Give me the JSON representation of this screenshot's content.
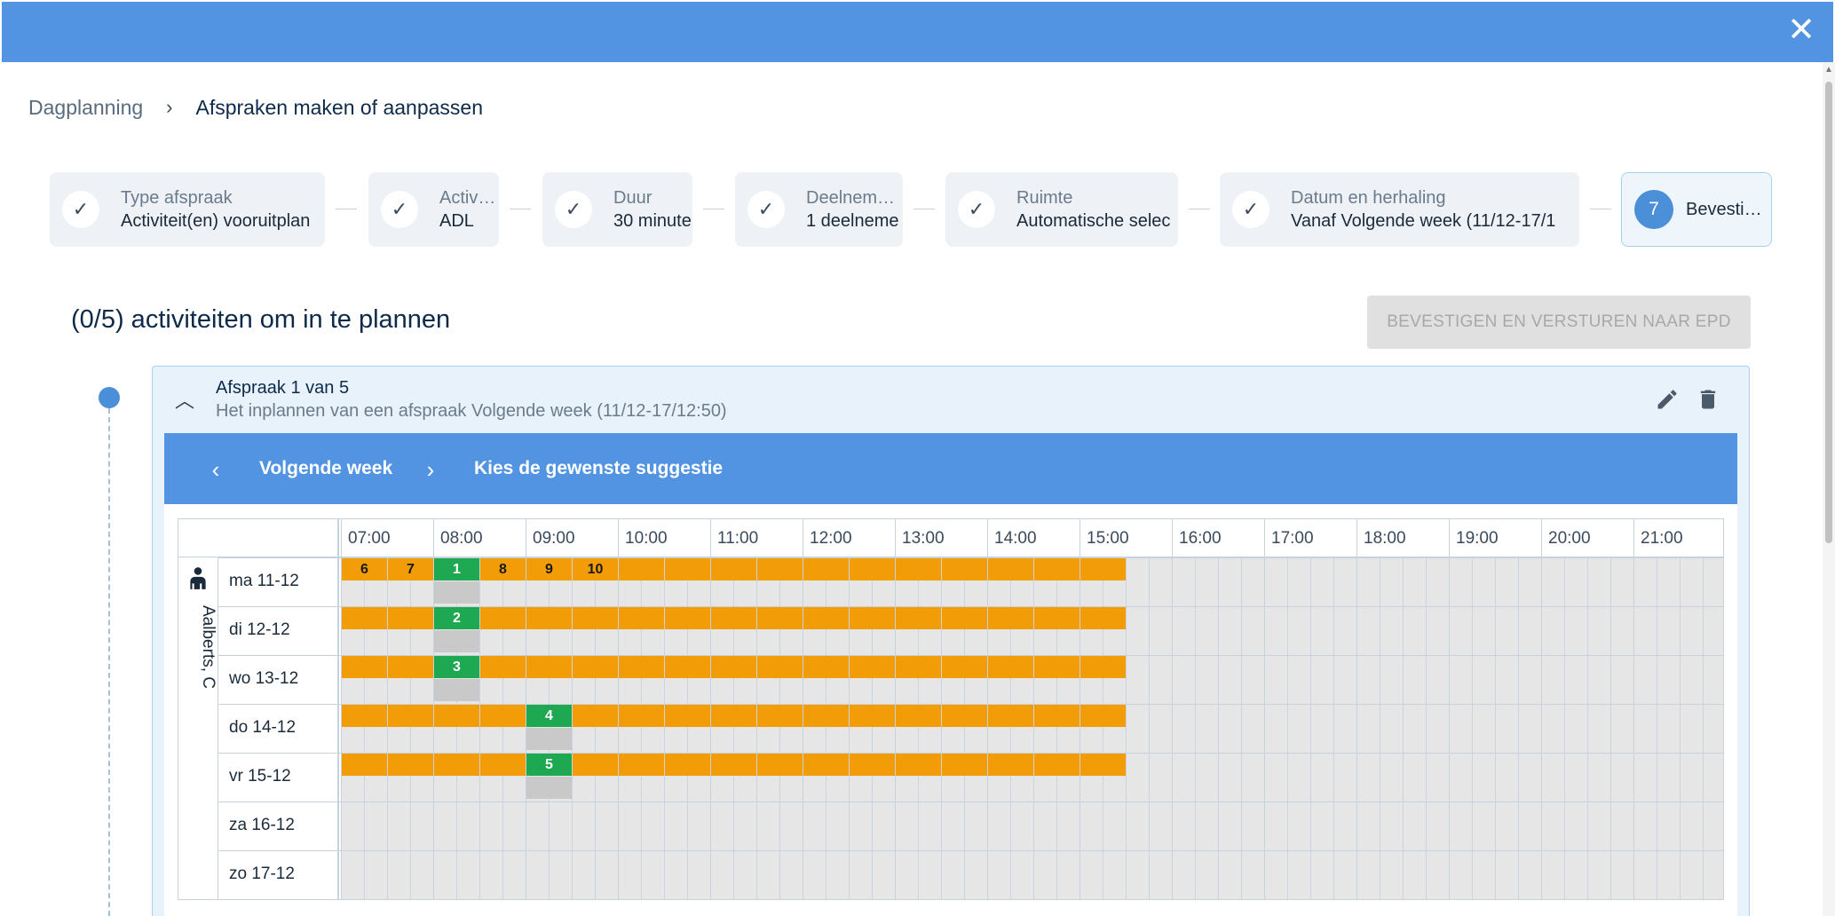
{
  "breadcrumb": {
    "parent": "Dagplanning",
    "current": "Afspraken maken of aanpassen"
  },
  "steps": [
    {
      "label": "Type afspraak",
      "value": "Activiteit(en) vooruitplan",
      "status": "done"
    },
    {
      "label": "Activit…",
      "value": "ADL",
      "status": "done"
    },
    {
      "label": "Duur",
      "value": "30 minute",
      "status": "done"
    },
    {
      "label": "Deelneme…",
      "value": "1 deelneme",
      "status": "done"
    },
    {
      "label": "Ruimte",
      "value": "Automatische selec",
      "status": "done"
    },
    {
      "label": "Datum en herhaling",
      "value": "Vanaf Volgende week (11/12-17/1",
      "status": "done"
    },
    {
      "number": "7",
      "label": "Bevesti…",
      "status": "active"
    }
  ],
  "section_title": "(0/5) activiteiten om in te plannen",
  "confirm_button": "BEVESTIGEN EN VERSTUREN NAAR EPD",
  "appointment": {
    "title": "Afspraak 1 van 5",
    "subtitle": "Het inplannen van een afspraak Volgende week (11/12-17/12:50)"
  },
  "week_nav": {
    "week_label": "Volgende week",
    "hint": "Kies de gewenste suggestie"
  },
  "person": "Aalberts, C",
  "hours": [
    "07:00",
    "08:00",
    "09:00",
    "10:00",
    "11:00",
    "12:00",
    "13:00",
    "14:00",
    "15:00",
    "16:00",
    "17:00",
    "18:00",
    "19:00",
    "20:00",
    "21:00"
  ],
  "days": [
    "ma 11-12",
    "di 12-12",
    "wo 13-12",
    "do 14-12",
    "vr 15-12",
    "za 16-12",
    "zo 17-12"
  ],
  "colors": {
    "available": "#f29d08",
    "selected_suggestion": "#1ea852",
    "header": "#5294e2"
  },
  "icons": [
    "close-icon",
    "check-icon",
    "chevron-right-icon",
    "chevron-up-icon",
    "chevron-left-icon",
    "edit-icon",
    "delete-icon",
    "person-icon"
  ],
  "schedule": [
    {
      "day": "ma 11-12",
      "suggestions": [
        {
          "label": "6",
          "slot": 0
        },
        {
          "label": "7",
          "slot": 1
        },
        {
          "label": "1",
          "slot": 2,
          "selected": true
        },
        {
          "label": "8",
          "slot": 3
        },
        {
          "label": "9",
          "slot": 4
        },
        {
          "label": "10",
          "slot": 5
        }
      ],
      "green_slot": 2
    },
    {
      "day": "di 12-12",
      "suggestions": [
        {
          "label": "2",
          "slot": 2,
          "selected": true
        }
      ],
      "green_slot": 2
    },
    {
      "day": "wo 13-12",
      "suggestions": [
        {
          "label": "3",
          "slot": 2,
          "selected": true
        }
      ],
      "green_slot": 2
    },
    {
      "day": "do 14-12",
      "suggestions": [
        {
          "label": "4",
          "slot": 4,
          "selected": true
        }
      ],
      "green_slot": 4
    },
    {
      "day": "vr 15-12",
      "suggestions": [
        {
          "label": "5",
          "slot": 4,
          "selected": true
        }
      ],
      "green_slot": 4
    },
    {
      "day": "za 16-12",
      "suggestions": [],
      "green_slot": null
    },
    {
      "day": "zo 17-12",
      "suggestions": [],
      "green_slot": null
    }
  ],
  "available_slot_count": 17
}
